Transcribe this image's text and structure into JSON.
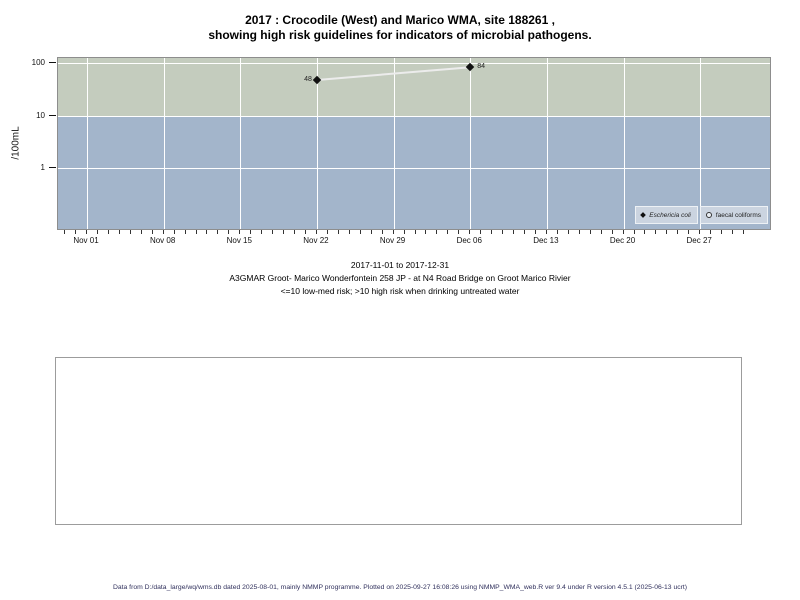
{
  "title": {
    "line1": "2017 : Crocodile (West) and Marico WMA, site 188261 ,",
    "line2": "showing high risk guidelines for indicators of microbial pathogens."
  },
  "chart_data": {
    "type": "line",
    "title": "2017 : Crocodile (West) and Marico WMA, site 188261, showing high risk guidelines for indicators of microbial pathogens.",
    "y_axis": {
      "label": "/100mL",
      "scale": "log",
      "ticks": [
        100,
        10,
        1
      ]
    },
    "x_axis": {
      "tick_labels": [
        "Nov 01",
        "Nov 08",
        "Nov 15",
        "Nov 22",
        "Nov 29",
        "Dec 06",
        "Dec 13",
        "Dec 20",
        "Dec 27"
      ],
      "minor_tick_interval": "1 day",
      "range": [
        "2017-11-01",
        "2017-12-31"
      ]
    },
    "bands": [
      {
        "name": "high-risk-band",
        "color": "#c4ccbe",
        "from": 10,
        "to": 100,
        "meaning": ">10 high risk"
      },
      {
        "name": "low-med-risk-band",
        "color": "#a3b5cb",
        "from": 0,
        "to": 10,
        "meaning": "<=10 low-med risk"
      }
    ],
    "gridline_color": "#ffffff",
    "series": [
      {
        "name": "Eschericia coli",
        "marker": "filled-diamond",
        "marker_color": "#111111",
        "line_color": "#ececec",
        "points": [
          {
            "x_label": "Nov 22",
            "value": 48,
            "label_side": "left"
          },
          {
            "x_label": "Dec 06",
            "value": 84,
            "label_side": "right"
          }
        ]
      },
      {
        "name": "faecal coliforms",
        "marker": "open-circle",
        "marker_color": "#333333",
        "points": []
      }
    ],
    "legend_position": "bottom-right"
  },
  "captions": {
    "date_range": "2017-11-01 to 2017-12-31",
    "site": "A3GMAR Groot- Marico Wonderfontein 258 JP - at N4 Road Bridge on Groot Marico Rivier",
    "risk_note": "<=10 low-med risk; >10 high risk when drinking untreated water"
  },
  "footer": {
    "text": "Data from D:/data_large/wq/wms.db dated 2025-08-01, mainly NMMP programme. Plotted on 2025-09-27 16:08:26 using NMMP_WMA_web.R ver 9.4 under R version 4.5.1 (2025-06-13 ucrt)"
  }
}
